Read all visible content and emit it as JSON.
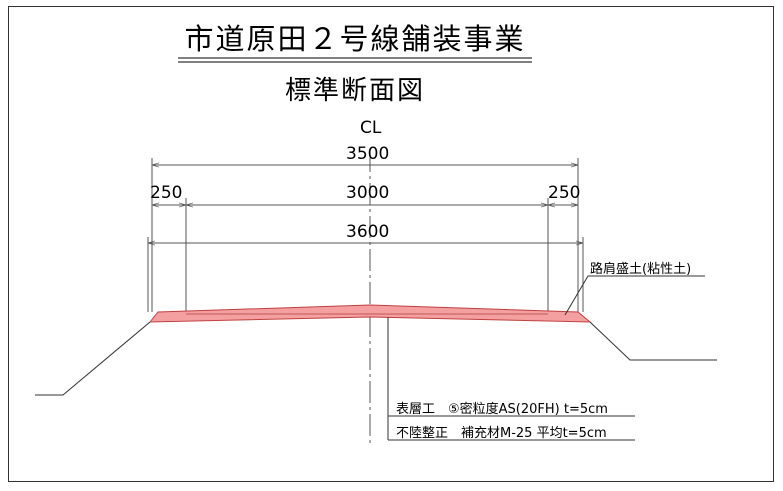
{
  "title": "市道原田２号線舗装事業",
  "subtitle": "標準断面図",
  "centerline_label": "CL",
  "dimensions": {
    "total_width": "3500",
    "left_shoulder": "250",
    "carriageway": "3000",
    "right_shoulder": "250",
    "pavement_width": "3600"
  },
  "annotations": {
    "shoulder_fill": "路肩盛土(粘性土)",
    "surface_course": "表層工　⑤密粒度AS(20FH) t=5cm",
    "leveling": "不陸整正　補充材M-25 平均t=5cm"
  },
  "colors": {
    "pavement_fill": "#f4a0a0",
    "pavement_stroke": "#c04040",
    "line": "#555555"
  }
}
